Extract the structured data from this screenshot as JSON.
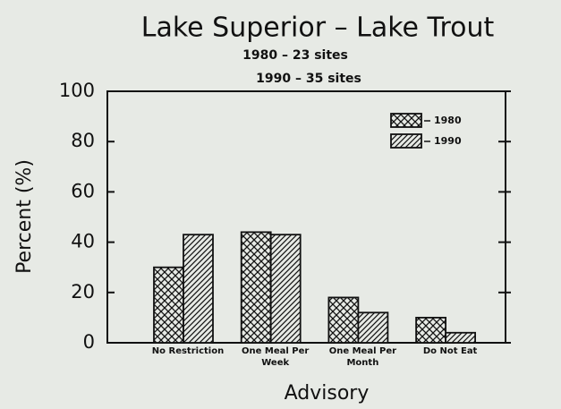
{
  "chart_data": {
    "type": "bar",
    "title": "Lake Superior – Lake Trout",
    "subtitle": [
      "1980 – 23 sites",
      "1990 – 35 sites"
    ],
    "x_label": "Advisory",
    "y_label": "Percent (%)",
    "categories": [
      "No Restriction",
      "One Meal Per Week",
      "One Meal Per Month",
      "Do Not Eat"
    ],
    "series": [
      {
        "name": "1980",
        "color": "#111111",
        "pattern": "crosshatch",
        "values": [
          30,
          44,
          18,
          10
        ]
      },
      {
        "name": "1990",
        "color": "#111111",
        "pattern": "diagonal",
        "values": [
          43,
          43,
          12,
          4
        ]
      }
    ],
    "ylim": [
      0,
      100
    ],
    "yticks": [
      0,
      20,
      40,
      60,
      80,
      100
    ],
    "legend": "top-right"
  }
}
